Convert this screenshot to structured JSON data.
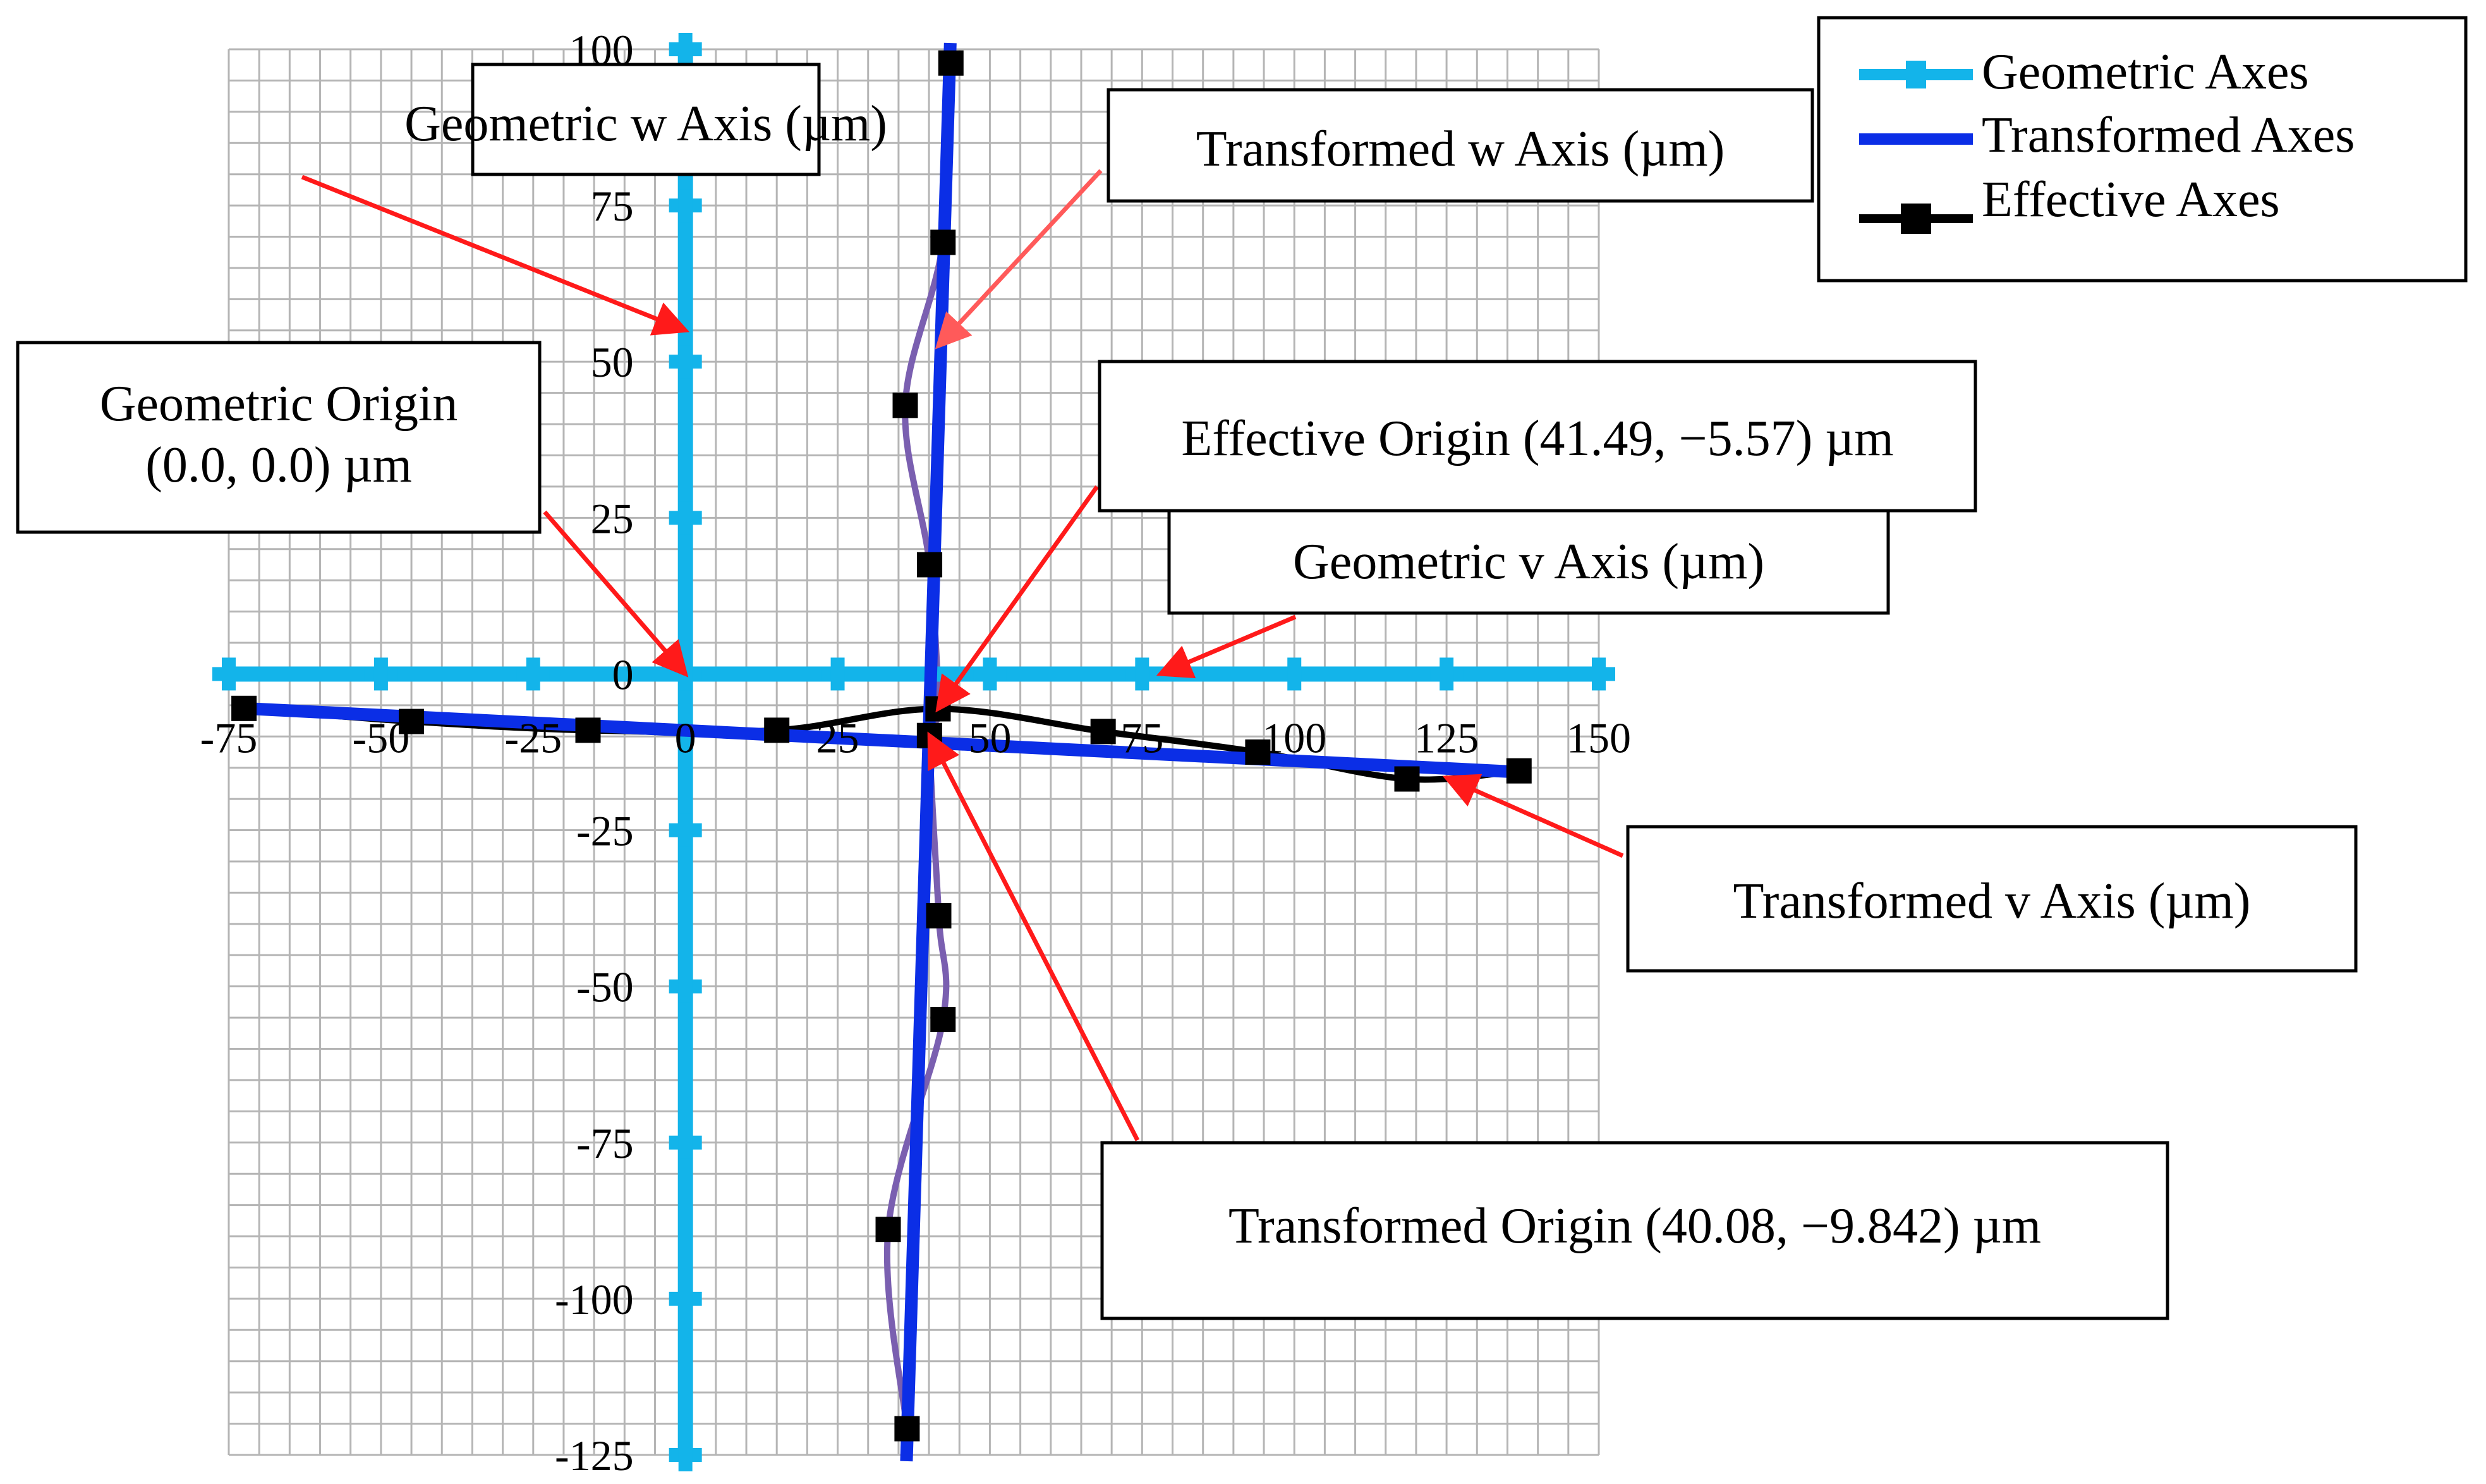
{
  "chart_data": {
    "type": "line",
    "title": "",
    "xlabel": "",
    "ylabel": "",
    "xlim": [
      -75,
      150
    ],
    "ylim": [
      -125,
      100
    ],
    "grid": true,
    "x_ticks": [
      -75,
      -50,
      -25,
      0,
      25,
      50,
      75,
      100,
      125,
      150
    ],
    "y_ticks": [
      100,
      75,
      50,
      25,
      0,
      -25,
      -50,
      -75,
      -100,
      -125
    ],
    "x_tick_labels": [
      "-75",
      "-50",
      "-25",
      "0",
      "25",
      "50",
      "75",
      "100",
      "125",
      "150"
    ],
    "y_tick_labels": [
      "100",
      "75",
      "50",
      "25",
      "0",
      "-25",
      "-50",
      "-75",
      "-100",
      "-125"
    ],
    "legend_position": "top-right",
    "series": [
      {
        "name": "Geometric Axes",
        "color": "#13b4ea",
        "segments": [
          [
            [
              -75,
              0
            ],
            [
              -50,
              0
            ],
            [
              -25,
              0
            ],
            [
              0,
              0
            ],
            [
              25,
              0
            ],
            [
              50,
              0
            ],
            [
              75,
              0
            ],
            [
              100,
              0
            ],
            [
              125,
              0
            ],
            [
              150,
              0
            ]
          ],
          [
            [
              0,
              100
            ],
            [
              0,
              75
            ],
            [
              0,
              50
            ],
            [
              0,
              25
            ],
            [
              0,
              0
            ],
            [
              0,
              -25
            ],
            [
              0,
              -50
            ],
            [
              0,
              -75
            ],
            [
              0,
              -100
            ],
            [
              0,
              -125
            ]
          ]
        ]
      },
      {
        "name": "Transformed Axes",
        "color": "#0b2ee6",
        "segments": [
          [
            [
              -72.5,
              -5.5
            ],
            [
              137,
              -15.7
            ]
          ],
          [
            [
              36.3,
              -126
            ],
            [
              43.5,
              101
            ]
          ]
        ]
      },
      {
        "name": "Effective Axes",
        "color": "#000000",
        "curve_colors": [
          "#000000",
          "#7a5fb0"
        ],
        "segments": [
          [
            [
              -72.5,
              -5.5
            ],
            [
              -45,
              -7.6
            ],
            [
              -16,
              -9
            ],
            [
              15,
              -9
            ],
            [
              41.49,
              -5.57
            ],
            [
              68.6,
              -9.2
            ],
            [
              94,
              -12.5
            ],
            [
              118.5,
              -16.8
            ],
            [
              136.9,
              -15.5
            ]
          ],
          [
            [
              36.4,
              -120.8
            ],
            [
              33.3,
              -88.9
            ],
            [
              42.3,
              -55.3
            ],
            [
              41.6,
              -38.7
            ],
            [
              40.08,
              -9.842
            ],
            [
              41.49,
              -5.57
            ],
            [
              40.1,
              17.5
            ],
            [
              36.1,
              43
            ],
            [
              42.3,
              69.1
            ],
            [
              43.6,
              97.8
            ]
          ]
        ]
      }
    ],
    "legend": [
      {
        "label": "Geometric Axes",
        "color": "#13b4ea"
      },
      {
        "label": "Transformed Axes",
        "color": "#0b2ee6"
      },
      {
        "label": "Effective Axes",
        "color": "#000000"
      }
    ],
    "annotations": [
      {
        "name": "geometric-w-axis",
        "lines": [
          "Geometric w Axis (µm)"
        ],
        "target": [
          0,
          55
        ],
        "arrow_color": "#ff1a1a"
      },
      {
        "name": "transformed-w-axis",
        "lines": [
          "Transformed w Axis (µm)"
        ],
        "target": [
          41.5,
          52.5
        ],
        "arrow_color": "#ff5a5a"
      },
      {
        "name": "geometric-origin",
        "lines": [
          "Geometric Origin",
          "(0.0, 0.0) µm"
        ],
        "target": [
          0,
          0
        ],
        "arrow_color": "#ff1a1a"
      },
      {
        "name": "effective-origin",
        "lines": [
          "Effective Origin (41.49, −5.57) µm"
        ],
        "target": [
          41.49,
          -5.57
        ],
        "arrow_color": "#ff1a1a"
      },
      {
        "name": "geometric-v-axis",
        "lines": [
          "Geometric v Axis (µm)"
        ],
        "target": [
          78,
          0
        ],
        "arrow_color": "#ff1a1a"
      },
      {
        "name": "transformed-v-axis",
        "lines": [
          "Transformed v Axis (µm)"
        ],
        "target": [
          125,
          -16.6
        ],
        "arrow_color": "#ff1a1a"
      },
      {
        "name": "transformed-origin",
        "lines": [
          "Transformed Origin (40.08, −9.842) µm"
        ],
        "target": [
          40.08,
          -9.842
        ],
        "arrow_color": "#ff1a1a"
      }
    ]
  }
}
